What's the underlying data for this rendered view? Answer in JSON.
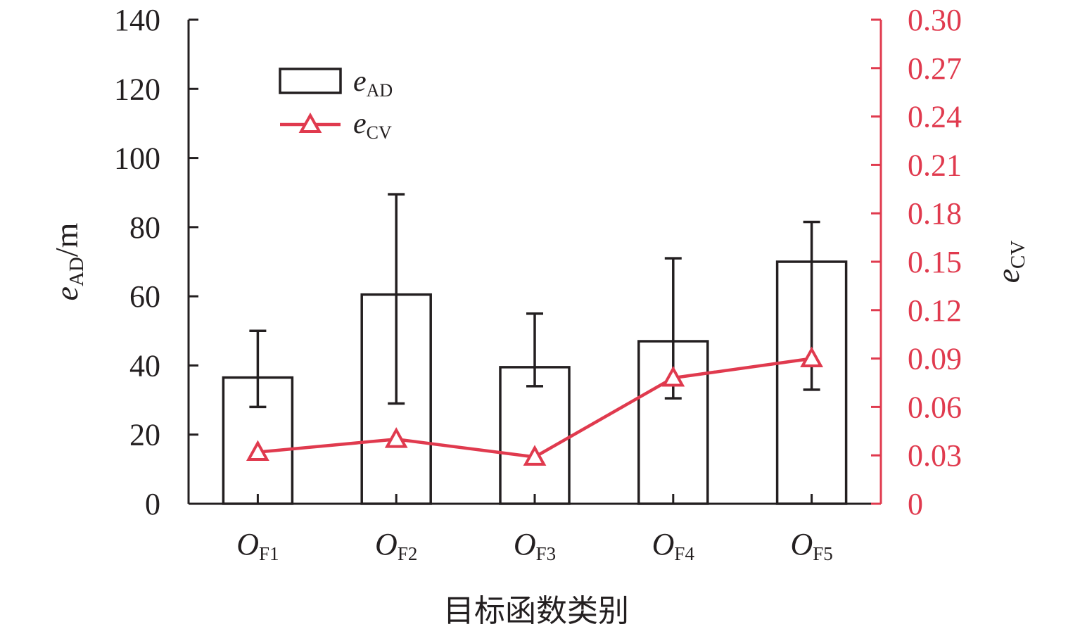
{
  "chart_data": {
    "type": "bar",
    "categories": [
      {
        "main": "O",
        "sub": "F1"
      },
      {
        "main": "O",
        "sub": "F2"
      },
      {
        "main": "O",
        "sub": "F3"
      },
      {
        "main": "O",
        "sub": "F4"
      },
      {
        "main": "O",
        "sub": "F5"
      }
    ],
    "xlabel": "目标函数类别",
    "ylabel_left": {
      "main": "e",
      "sub": "AD",
      "suffix": "/m"
    },
    "ylabel_right": {
      "main": "e",
      "sub": "CV"
    },
    "ylim_left": [
      0,
      140
    ],
    "ylim_right": [
      0,
      0.3
    ],
    "yticks_left": [
      "0",
      "20",
      "40",
      "60",
      "80",
      "100",
      "120",
      "140"
    ],
    "yticks_right": [
      "0",
      "0.03",
      "0.06",
      "0.09",
      "0.12",
      "0.15",
      "0.18",
      "0.21",
      "0.24",
      "0.27",
      "0.30"
    ],
    "grid": false,
    "legend_position": "top-left",
    "series": [
      {
        "type": "bar",
        "axis": "left",
        "legend": {
          "main": "e",
          "sub": "AD"
        },
        "values": [
          36.5,
          60.5,
          39.5,
          47,
          70
        ],
        "error_low": [
          28,
          29,
          34,
          30.5,
          33
        ],
        "error_high": [
          50,
          89.5,
          55,
          71,
          81.5
        ],
        "color": "#231f20"
      },
      {
        "type": "line",
        "axis": "right",
        "legend": {
          "main": "e",
          "sub": "CV"
        },
        "values": [
          0.032,
          0.04,
          0.029,
          0.078,
          0.09
        ],
        "color": "#e03a4e"
      }
    ]
  }
}
